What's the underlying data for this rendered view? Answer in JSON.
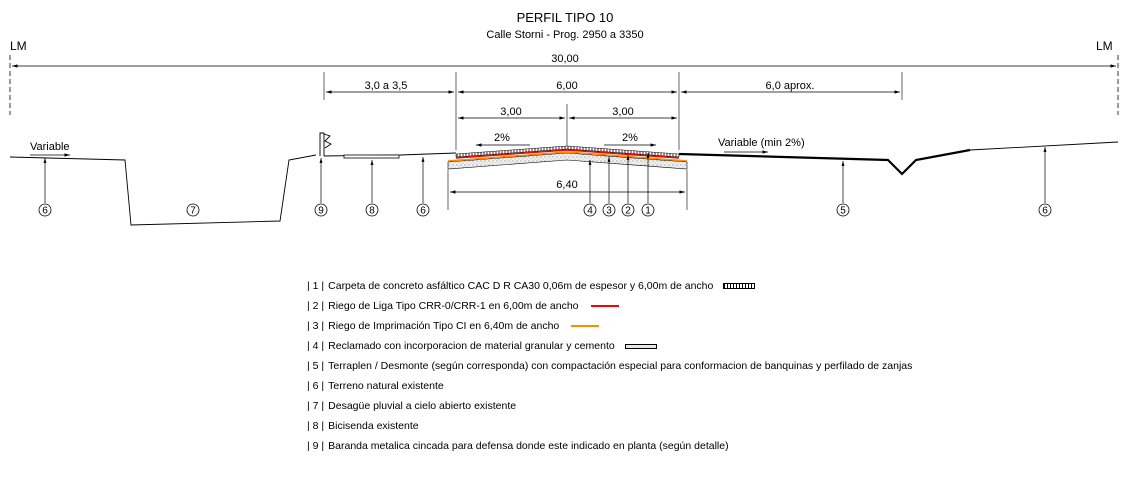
{
  "title": "PERFIL TIPO 10",
  "subtitle": "Calle Storni - Prog.  2950 a 3350",
  "lm_left": "LM",
  "lm_right": "LM",
  "dims": {
    "total": "30,00",
    "bicisenda": "3,0 a 3,5",
    "calzada": "6,00",
    "half_left": "3,00",
    "half_right": "3,00",
    "right": "6,0 aprox.",
    "base": "6,40"
  },
  "slopes": {
    "left": "2%",
    "right": "2%",
    "left_terrain": "Variable",
    "right_terrain": "Variable (min 2%)"
  },
  "callouts": [
    "6",
    "7",
    "9",
    "8",
    "6",
    "4",
    "3",
    "2",
    "1",
    "5",
    "6"
  ],
  "legend": [
    {
      "num": "| 1 |",
      "text": "Carpeta de concreto asfáltico CAC D R CA30 0,06m de espesor y 6,00m de ancho",
      "swatch": "carpeta"
    },
    {
      "num": "| 2 |",
      "text": "Riego de Liga Tipo CRR-0/CRR-1 en 6,00m de ancho",
      "swatch": "liga"
    },
    {
      "num": "| 3 |",
      "text": "Riego de Imprimación Tipo CI en 6,40m de ancho",
      "swatch": "imprim"
    },
    {
      "num": "| 4 |",
      "text": "Reclamado con incorporacion de material granular y cemento",
      "swatch": "reclamado"
    },
    {
      "num": "| 5 |",
      "text": "Terraplen  / Desmonte (según corresponda) con compactación especial para conformacion de banquinas y perfilado de zanjas",
      "swatch": ""
    },
    {
      "num": "| 6 |",
      "text": "Terreno natural existente",
      "swatch": ""
    },
    {
      "num": "| 7 |",
      "text": "Desagüe pluvial a cielo abierto existente",
      "swatch": ""
    },
    {
      "num": "| 8 |",
      "text": "Bicisenda existente",
      "swatch": ""
    },
    {
      "num": "| 9 |",
      "text": "Baranda metalica cincada para defensa donde este indicado en planta (según detalle)",
      "swatch": ""
    }
  ],
  "colors": {
    "liga": "#ff0000",
    "imprimacion": "#ff8c00",
    "line": "#000000"
  }
}
